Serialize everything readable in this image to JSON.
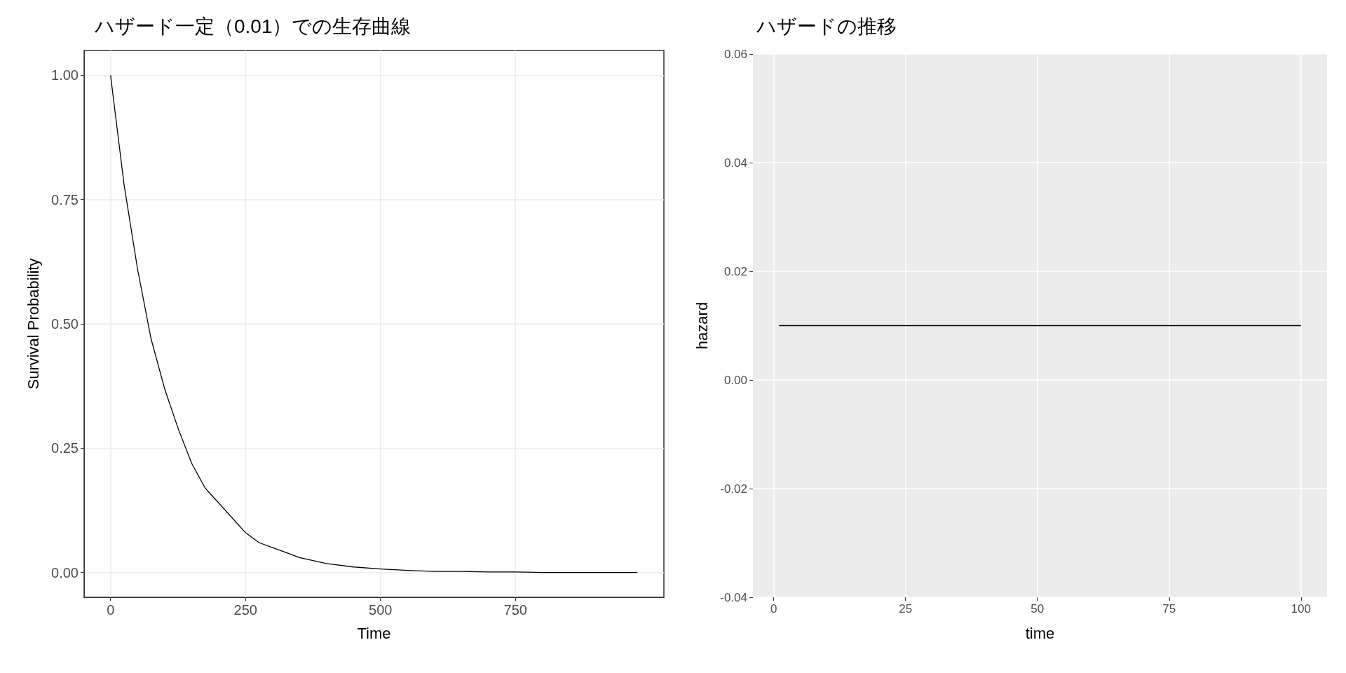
{
  "chart_data": [
    {
      "type": "line",
      "title": "ハザード一定（0.01）での生存曲線",
      "xlabel": "Time",
      "ylabel": "Survival Probability",
      "x": [
        0,
        25,
        50,
        75,
        100,
        125,
        150,
        175,
        200,
        225,
        250,
        275,
        300,
        325,
        350,
        375,
        400,
        450,
        500,
        550,
        600,
        650,
        700,
        750,
        800,
        850,
        900,
        976
      ],
      "series": [
        {
          "color": "#000000",
          "values": [
            1.0,
            0.78,
            0.61,
            0.47,
            0.37,
            0.29,
            0.22,
            0.17,
            0.14,
            0.11,
            0.08,
            0.06,
            0.05,
            0.04,
            0.03,
            0.024,
            0.018,
            0.011,
            0.007,
            0.004,
            0.002,
            0.002,
            0.001,
            0.001,
            0,
            0,
            0,
            0
          ]
        }
      ],
      "xlim": [
        -49,
        1025
      ],
      "ylim": [
        -0.05,
        1.05
      ],
      "xticks": [
        0,
        250,
        500,
        750
      ],
      "yticks": [
        {
          "value": 0,
          "label": "0.00"
        },
        {
          "value": 0.25,
          "label": "0.25"
        },
        {
          "value": 0.5,
          "label": "0.50"
        },
        {
          "value": 0.75,
          "label": "0.75"
        },
        {
          "value": 1,
          "label": "1.00"
        }
      ],
      "grid": true
    },
    {
      "type": "line",
      "title": "ハザードの推移",
      "xlabel": "time",
      "ylabel": "hazard",
      "x": [
        1,
        100
      ],
      "series": [
        {
          "color": "#000000",
          "values": [
            0.01,
            0.01
          ]
        }
      ],
      "xlim": [
        -3.95,
        104.95
      ],
      "ylim": [
        -0.04,
        0.06
      ],
      "xticks": [
        0,
        25,
        50,
        75,
        100
      ],
      "yticks": [
        {
          "value": -0.04,
          "label": "-0.04"
        },
        {
          "value": -0.02,
          "label": "-0.02"
        },
        {
          "value": 0,
          "label": "0.00"
        },
        {
          "value": 0.02,
          "label": "0.02"
        },
        {
          "value": 0.04,
          "label": "0.04"
        },
        {
          "value": 0.06,
          "label": "0.06"
        }
      ],
      "grid": true
    }
  ]
}
